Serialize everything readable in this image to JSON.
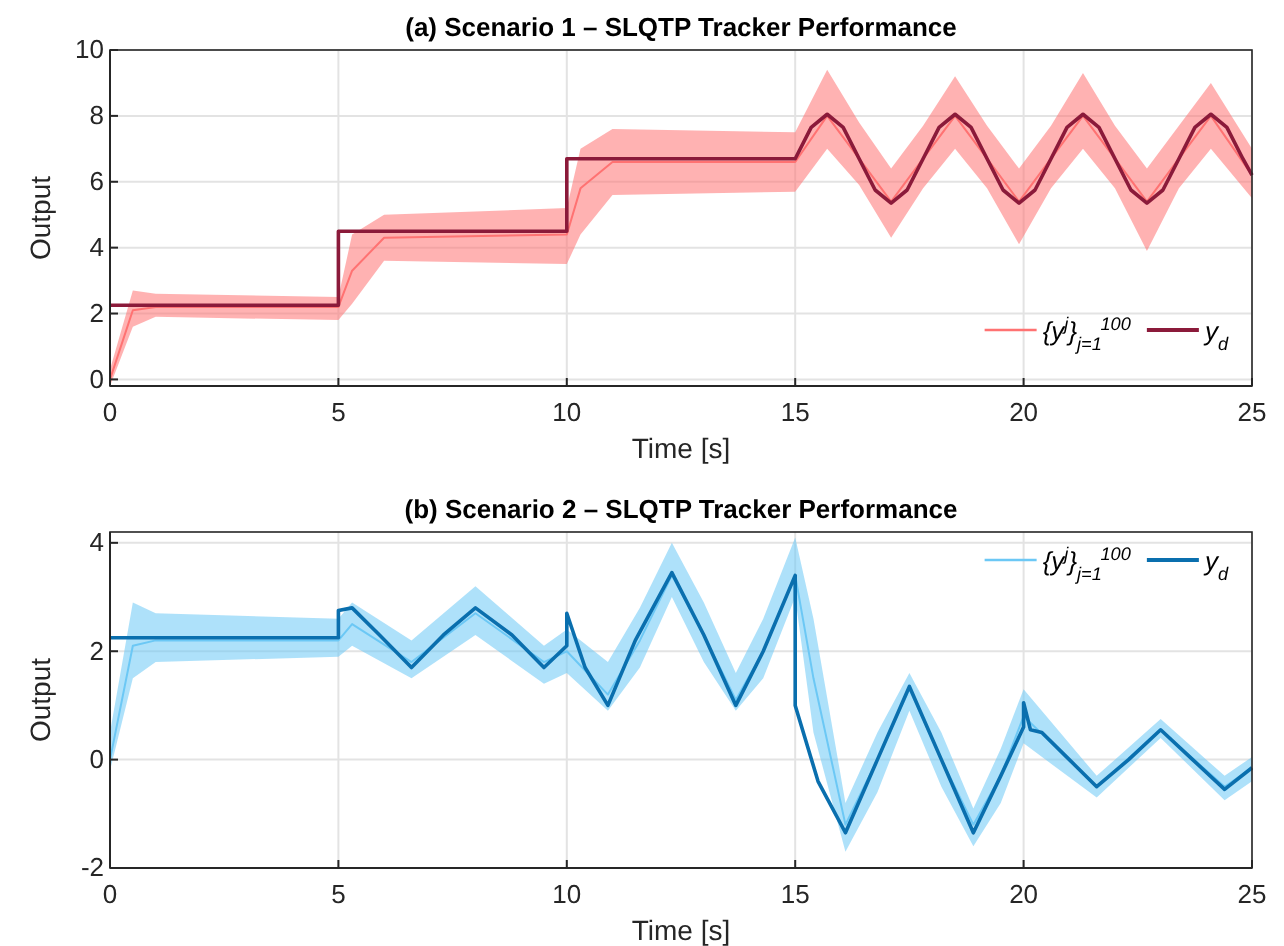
{
  "chart_data": [
    {
      "type": "line",
      "title": "(a) Scenario 1 – SLQTP Tracker Performance",
      "xlabel": "Time [s]",
      "ylabel": "Output",
      "xlim": [
        0,
        25
      ],
      "xticks": [
        0,
        5,
        10,
        15,
        20,
        25
      ],
      "ylim": [
        -0.2,
        10
      ],
      "yticks": [
        0,
        2,
        4,
        6,
        8,
        10
      ],
      "grid": true,
      "legend": "bottom right",
      "series": [
        {
          "name": "{y$^{j}$}$_{j=1}$$^{100}$",
          "color": "#ff7272",
          "x": [
            0,
            0.5,
            1,
            5,
            5.3,
            6,
            10,
            10.3,
            11,
            15,
            15.7,
            16.4,
            17.1,
            17.8,
            18.5,
            19.2,
            19.9,
            20.6,
            21.3,
            22.0,
            22.7,
            23.4,
            24.1,
            25
          ],
          "values": [
            0,
            2.1,
            2.2,
            2.2,
            3.3,
            4.3,
            4.4,
            5.8,
            6.6,
            6.6,
            8.0,
            6.7,
            5.4,
            6.7,
            8.0,
            6.7,
            5.4,
            6.7,
            8.0,
            6.7,
            5.4,
            6.7,
            8.0,
            6.2
          ],
          "lower": [
            -0.2,
            1.6,
            1.9,
            1.8,
            2.3,
            3.6,
            3.5,
            4.4,
            5.6,
            5.7,
            7.0,
            5.9,
            4.3,
            5.8,
            7.0,
            5.8,
            4.1,
            5.8,
            7.0,
            5.8,
            3.9,
            5.8,
            7.0,
            5.5
          ],
          "upper": [
            0.3,
            2.7,
            2.6,
            2.5,
            4.4,
            5.0,
            5.2,
            7.0,
            7.6,
            7.5,
            9.4,
            7.8,
            6.4,
            7.7,
            9.2,
            7.7,
            6.4,
            7.7,
            9.3,
            7.7,
            6.4,
            7.7,
            9.0,
            7.0
          ]
        },
        {
          "name": "y$_{d}$",
          "color": "#8b1a3a",
          "x": [
            0,
            5,
            5,
            10,
            10,
            15,
            15.35,
            15.7,
            16.05,
            16.4,
            16.75,
            17.1,
            17.45,
            17.8,
            18.15,
            18.5,
            18.85,
            19.2,
            19.55,
            19.9,
            20.25,
            20.6,
            20.95,
            21.3,
            21.65,
            22.0,
            22.35,
            22.7,
            23.05,
            23.4,
            23.75,
            24.1,
            24.45,
            24.8,
            25
          ],
          "values": [
            2.25,
            2.25,
            4.5,
            4.5,
            6.7,
            6.7,
            7.65,
            8.05,
            7.65,
            6.7,
            5.75,
            5.35,
            5.75,
            6.7,
            7.65,
            8.05,
            7.65,
            6.7,
            5.75,
            5.35,
            5.75,
            6.7,
            7.65,
            8.05,
            7.65,
            6.7,
            5.75,
            5.35,
            5.75,
            6.7,
            7.65,
            8.05,
            7.65,
            6.7,
            6.2
          ]
        }
      ]
    },
    {
      "type": "line",
      "title": "(b) Scenario 2 – SLQTP Tracker Performance",
      "xlabel": "Time [s]",
      "ylabel": "Output",
      "xlim": [
        0,
        25
      ],
      "xticks": [
        0,
        5,
        10,
        15,
        20,
        25
      ],
      "ylim": [
        -2,
        4.2
      ],
      "yticks": [
        -2,
        0,
        2,
        4
      ],
      "grid": true,
      "legend": "top right",
      "series": [
        {
          "name": "{y$^{j}$}$_{j=1}$$^{100}$",
          "color": "#6cc8f5",
          "x": [
            0,
            0.5,
            1,
            5,
            5.3,
            6.6,
            8.0,
            9.5,
            10,
            10.9,
            11.6,
            12.3,
            13.0,
            13.7,
            14.3,
            15,
            15.4,
            16.1,
            16.8,
            17.5,
            18.2,
            18.9,
            19.5,
            20,
            21.6,
            23.0,
            24.4,
            25
          ],
          "values": [
            0,
            2.1,
            2.2,
            2.2,
            2.5,
            1.8,
            2.7,
            1.8,
            2.0,
            1.2,
            2.2,
            3.4,
            2.3,
            1.1,
            2.0,
            3.4,
            1.5,
            -1.2,
            0,
            1.3,
            0,
            -1.2,
            -0.3,
            0.8,
            -0.5,
            0.55,
            -0.5,
            -0.15
          ],
          "lower": [
            -0.2,
            1.5,
            1.8,
            1.9,
            2.1,
            1.5,
            2.3,
            1.4,
            1.6,
            0.9,
            1.7,
            3.0,
            1.8,
            0.9,
            1.5,
            3.0,
            0.5,
            -1.7,
            -0.6,
            0.9,
            -0.5,
            -1.6,
            -0.8,
            0.3,
            -0.7,
            0.4,
            -0.75,
            -0.4
          ],
          "upper": [
            0.5,
            2.9,
            2.7,
            2.6,
            2.9,
            2.2,
            3.2,
            2.1,
            2.4,
            1.8,
            2.8,
            4.0,
            2.9,
            1.6,
            2.6,
            4.1,
            2.6,
            -0.8,
            0.5,
            1.6,
            0.5,
            -0.9,
            0.2,
            1.3,
            -0.3,
            0.75,
            -0.3,
            0.05
          ]
        },
        {
          "name": "y$_{d}$",
          "color": "#0a6fae",
          "x": [
            0,
            5,
            5,
            5.3,
            5.9,
            6.6,
            7.3,
            8.0,
            8.8,
            9.5,
            10,
            10,
            10.4,
            10.9,
            11.5,
            12.3,
            13.0,
            13.7,
            14.3,
            15,
            15,
            15.5,
            16.1,
            16.8,
            17.5,
            18.2,
            18.9,
            19.5,
            20,
            20,
            20.15,
            20.4,
            21.0,
            21.6,
            22.3,
            23.0,
            23.7,
            24.4,
            25
          ],
          "values": [
            2.25,
            2.25,
            2.75,
            2.8,
            2.3,
            1.7,
            2.3,
            2.8,
            2.3,
            1.7,
            2.1,
            2.7,
            1.7,
            1.0,
            2.2,
            3.45,
            2.3,
            1.0,
            2.0,
            3.4,
            1.0,
            -0.4,
            -1.35,
            0.0,
            1.35,
            0.0,
            -1.35,
            -0.3,
            0.6,
            1.05,
            0.55,
            0.5,
            0.0,
            -0.5,
            0.0,
            0.55,
            0.0,
            -0.55,
            -0.15
          ]
        }
      ]
    }
  ]
}
